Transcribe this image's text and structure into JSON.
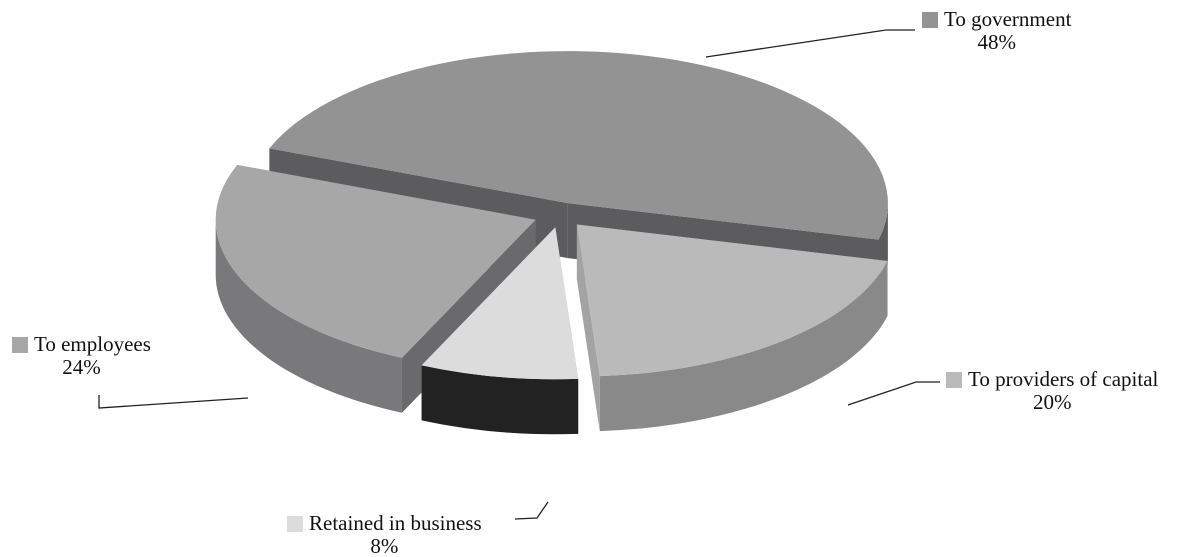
{
  "chart_data": {
    "type": "pie",
    "style": "3d-exploded",
    "categories": [
      "To government",
      "To providers of capital",
      "Retained in business",
      "To employees"
    ],
    "values": [
      48,
      20,
      8,
      24
    ],
    "value_labels": [
      "48%",
      "20%",
      "8%",
      "24%"
    ],
    "colors": {
      "To government": "#939393",
      "To providers of capital": "#bababa",
      "Retained in business": "#dcdcdc",
      "To employees": "#a7a7a7"
    },
    "title": "",
    "legend": "callout-labels"
  }
}
